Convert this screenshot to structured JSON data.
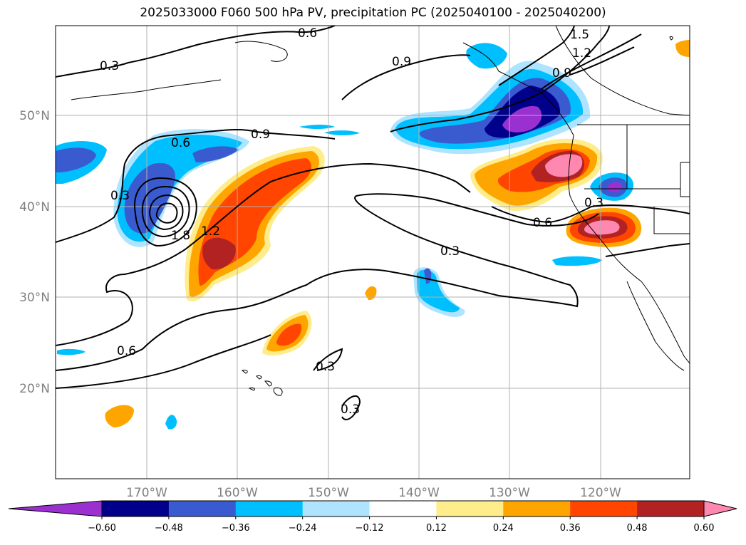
{
  "title": "2025033000 F060 500 hPa PV, precipitation PC (2025040100 - 2025040200)",
  "map": {
    "lat_labels": [
      "50°N",
      "40°N",
      "30°N",
      "20°N"
    ],
    "lon_labels": [
      "170°W",
      "160°W",
      "150°W",
      "140°W",
      "130°W",
      "120°W"
    ],
    "lat_values": [
      50,
      40,
      30,
      20
    ],
    "lon_values": [
      -170,
      -160,
      -150,
      -140,
      -130,
      -120
    ],
    "contour_labels": [
      "0.6",
      "0.3",
      "0.9",
      "1.5",
      "1.2",
      "0.9",
      "0.6",
      "0.9",
      "0.3",
      "1.8",
      "1.2",
      "0.6",
      "0.3",
      "0.6",
      "0.3",
      "0.3",
      "0.3"
    ]
  },
  "colorbar": {
    "ticks": [
      "−0.60",
      "−0.48",
      "−0.36",
      "−0.24",
      "−0.12",
      "0.12",
      "0.24",
      "0.36",
      "0.48",
      "0.60"
    ],
    "colors": [
      "#9b30d0",
      "#00008b",
      "#3a5bd0",
      "#00bfff",
      "#aee4ff",
      "#ffffff",
      "#ffec8b",
      "#ffa500",
      "#ff4500",
      "#b22222",
      "#ff88b0"
    ]
  }
}
